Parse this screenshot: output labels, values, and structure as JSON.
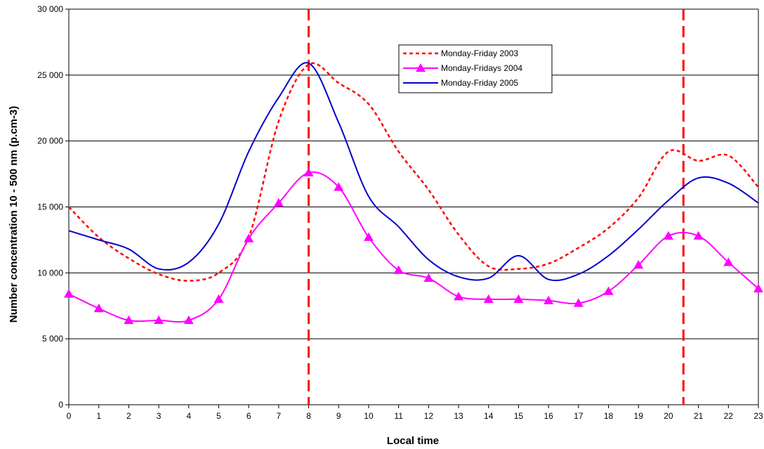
{
  "chart_data": {
    "type": "line",
    "xlabel": "Local time",
    "ylabel": "Number concentration 10 - 500 nm (p.cm-3)",
    "x": [
      0,
      1,
      2,
      3,
      4,
      5,
      6,
      7,
      8,
      9,
      10,
      11,
      12,
      13,
      14,
      15,
      16,
      17,
      18,
      19,
      20,
      21,
      22,
      23
    ],
    "xlim": [
      0,
      23
    ],
    "ylim": [
      0,
      30000
    ],
    "y_ticks": [
      0,
      5000,
      10000,
      15000,
      20000,
      25000,
      30000
    ],
    "y_tick_labels": [
      "0",
      "5 000",
      "10 000",
      "15 000",
      "20 000",
      "25 000",
      "30 000"
    ],
    "x_tick_labels": [
      "0",
      "1",
      "2",
      "3",
      "4",
      "5",
      "6",
      "7",
      "8",
      "9",
      "10",
      "11",
      "12",
      "13",
      "14",
      "15",
      "16",
      "17",
      "18",
      "19",
      "20",
      "21",
      "22",
      "23"
    ],
    "grid": "horizontal",
    "legend_position": "top-center",
    "vertical_markers": [
      8,
      20.5
    ],
    "series": [
      {
        "name": "Monday-Friday 2003",
        "color": "#ff0000",
        "style": "dotted",
        "values": [
          15000,
          12700,
          11100,
          9900,
          9400,
          10000,
          12700,
          21500,
          25800,
          24400,
          22800,
          19200,
          16300,
          12900,
          10500,
          10300,
          10700,
          11900,
          13400,
          15700,
          19200,
          18500,
          18900,
          16500
        ]
      },
      {
        "name": "Monday-Fridays 2004",
        "color": "#ff00ff",
        "style": "solid-triangle",
        "values": [
          8400,
          7300,
          6400,
          6400,
          6400,
          8000,
          12600,
          15300,
          17600,
          16500,
          12700,
          10200,
          9600,
          8200,
          8000,
          8000,
          7900,
          7700,
          8600,
          10600,
          12800,
          12800,
          10800,
          8800
        ]
      },
      {
        "name": "Monday-Friday 2005",
        "color": "#0000cc",
        "style": "solid",
        "values": [
          13200,
          12500,
          11800,
          10300,
          10800,
          13700,
          19200,
          23300,
          25900,
          21400,
          15800,
          13500,
          11000,
          9700,
          9600,
          11300,
          9500,
          9900,
          11300,
          13300,
          15500,
          17200,
          16800,
          15300
        ]
      }
    ],
    "vertical_marker_color": "#ff0000"
  }
}
